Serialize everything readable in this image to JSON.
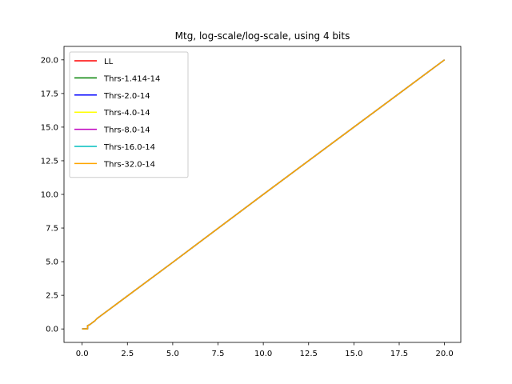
{
  "chart_data": {
    "type": "line",
    "title": "Mtg, log-scale/log-scale, using 4 bits",
    "xlabel": "",
    "ylabel": "",
    "xlim": [
      -1.0,
      20.9
    ],
    "ylim": [
      -1.0,
      21.0
    ],
    "x_ticks": [
      0.0,
      2.5,
      5.0,
      7.5,
      10.0,
      12.5,
      15.0,
      17.5,
      20.0
    ],
    "x_tick_labels": [
      "0.0",
      "2.5",
      "5.0",
      "7.5",
      "10.0",
      "12.5",
      "15.0",
      "17.5",
      "20.0"
    ],
    "y_ticks": [
      0.0,
      2.5,
      5.0,
      7.5,
      10.0,
      12.5,
      15.0,
      17.5,
      20.0
    ],
    "y_tick_labels": [
      "0.0",
      "2.5",
      "5.0",
      "7.5",
      "10.0",
      "12.5",
      "15.0",
      "17.5",
      "20.0"
    ],
    "grid": false,
    "legend_position": "top-left",
    "series": [
      {
        "name": "LL",
        "color": "#ff0000",
        "x": [
          0.0,
          0.2,
          0.3,
          0.3,
          0.4,
          0.5,
          0.6,
          0.7,
          0.8,
          0.9,
          1.0,
          1.5,
          2.0,
          5.0,
          10.0,
          15.0,
          20.0
        ],
        "y": [
          0.0,
          0.0,
          0.0,
          0.25,
          0.3,
          0.4,
          0.5,
          0.6,
          0.75,
          0.85,
          0.95,
          1.45,
          1.95,
          4.95,
          10.0,
          15.0,
          20.0
        ]
      },
      {
        "name": "Thrs-1.414-14",
        "color": "#008000",
        "x": [
          0.0,
          0.2,
          0.3,
          0.3,
          0.4,
          0.5,
          0.6,
          0.7,
          0.8,
          0.9,
          1.0,
          1.5,
          2.0,
          5.0,
          10.0,
          15.0,
          20.0
        ],
        "y": [
          0.0,
          0.0,
          0.0,
          0.25,
          0.3,
          0.4,
          0.5,
          0.6,
          0.75,
          0.85,
          0.95,
          1.45,
          1.95,
          4.95,
          10.0,
          15.0,
          20.0
        ]
      },
      {
        "name": "Thrs-2.0-14",
        "color": "#0000ff",
        "x": [
          0.0,
          0.2,
          0.3,
          0.3,
          0.4,
          0.5,
          0.6,
          0.7,
          0.8,
          0.9,
          1.0,
          1.5,
          2.0,
          5.0,
          10.0,
          15.0,
          20.0
        ],
        "y": [
          0.0,
          0.0,
          0.0,
          0.25,
          0.3,
          0.4,
          0.5,
          0.6,
          0.75,
          0.85,
          0.95,
          1.45,
          1.95,
          4.95,
          10.0,
          15.0,
          20.0
        ]
      },
      {
        "name": "Thrs-4.0-14",
        "color": "#ffff00",
        "x": [
          0.0,
          0.2,
          0.3,
          0.3,
          0.4,
          0.5,
          0.6,
          0.7,
          0.8,
          0.9,
          1.0,
          1.5,
          2.0,
          5.0,
          10.0,
          15.0,
          20.0
        ],
        "y": [
          0.0,
          0.0,
          0.0,
          0.25,
          0.3,
          0.4,
          0.5,
          0.6,
          0.75,
          0.85,
          0.95,
          1.45,
          1.95,
          4.95,
          10.0,
          15.0,
          20.0
        ]
      },
      {
        "name": "Thrs-8.0-14",
        "color": "#bf00bf",
        "x": [
          0.0,
          0.2,
          0.3,
          0.3,
          0.4,
          0.5,
          0.6,
          0.7,
          0.8,
          0.9,
          1.0,
          1.5,
          2.0,
          5.0,
          10.0,
          15.0,
          20.0
        ],
        "y": [
          0.0,
          0.0,
          0.0,
          0.25,
          0.3,
          0.4,
          0.5,
          0.6,
          0.75,
          0.85,
          0.95,
          1.45,
          1.95,
          4.95,
          10.0,
          15.0,
          20.0
        ]
      },
      {
        "name": "Thrs-16.0-14",
        "color": "#00bfbf",
        "x": [
          0.0,
          0.2,
          0.3,
          0.3,
          0.4,
          0.5,
          0.6,
          0.7,
          0.8,
          0.9,
          1.0,
          1.5,
          2.0,
          5.0,
          10.0,
          15.0,
          20.0
        ],
        "y": [
          0.0,
          0.0,
          0.0,
          0.25,
          0.3,
          0.4,
          0.5,
          0.6,
          0.75,
          0.85,
          0.95,
          1.45,
          1.95,
          4.95,
          10.0,
          15.0,
          20.0
        ]
      },
      {
        "name": "Thrs-32.0-14",
        "color": "#ffa500",
        "x": [
          0.0,
          0.2,
          0.3,
          0.3,
          0.4,
          0.5,
          0.6,
          0.7,
          0.8,
          0.9,
          1.0,
          1.5,
          2.0,
          5.0,
          10.0,
          15.0,
          20.0
        ],
        "y": [
          0.0,
          0.0,
          0.0,
          0.25,
          0.3,
          0.4,
          0.5,
          0.6,
          0.75,
          0.85,
          0.95,
          1.45,
          1.95,
          4.95,
          10.0,
          15.0,
          20.0
        ]
      }
    ]
  }
}
